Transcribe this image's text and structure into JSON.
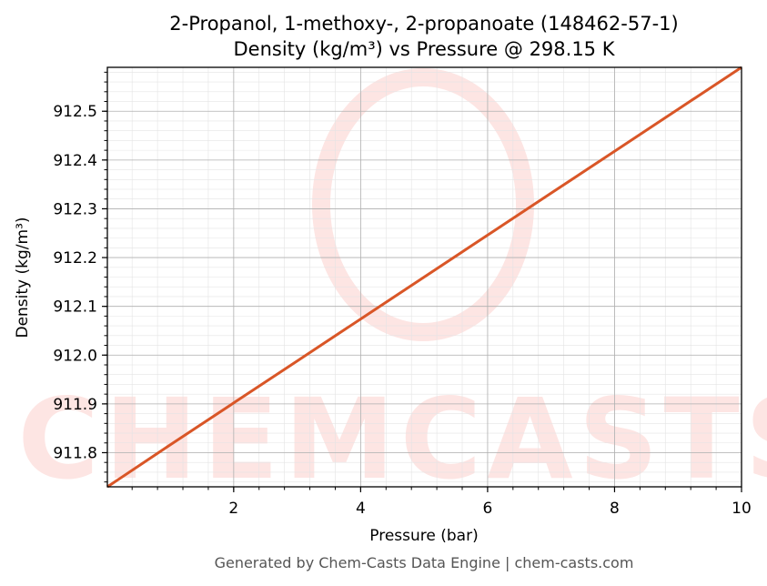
{
  "colors": {
    "line": "#d95627",
    "grid_major": "#b0b0b0",
    "grid_minor": "#e4e4e4",
    "watermark": "#fde5e3",
    "footer": "#555555"
  },
  "footer": "Generated by Chem-Casts Data Engine | chem-casts.com",
  "watermark": "CHEMCASTS",
  "chart_data": {
    "type": "line",
    "title": "2-Propanol, 1-methoxy-, 2-propanoate (148462-57-1)",
    "subtitle": "Density (kg/m³) vs Pressure @ 298.15 K",
    "xlabel": "Pressure (bar)",
    "ylabel": "Density (kg/m³)",
    "xlim": [
      0.01,
      10
    ],
    "ylim": [
      911.73,
      912.59
    ],
    "xticks": [
      2,
      4,
      6,
      8,
      10
    ],
    "yticks": [
      911.8,
      911.9,
      912.0,
      912.1,
      912.2,
      912.3,
      912.4,
      912.5
    ],
    "xtick_labels": [
      "2",
      "4",
      "6",
      "8",
      "10"
    ],
    "ytick_labels": [
      "911.8",
      "911.9",
      "912.0",
      "912.1",
      "912.2",
      "912.3",
      "912.4",
      "912.5"
    ],
    "grid": true,
    "minor_grid": true,
    "series": [
      {
        "x": [
          0.01,
          1,
          2,
          3,
          4,
          5,
          6,
          7,
          8,
          9,
          10
        ],
        "y": [
          911.73,
          911.816,
          911.902,
          911.988,
          912.074,
          912.16,
          912.246,
          912.332,
          912.418,
          912.504,
          912.59
        ]
      }
    ]
  }
}
